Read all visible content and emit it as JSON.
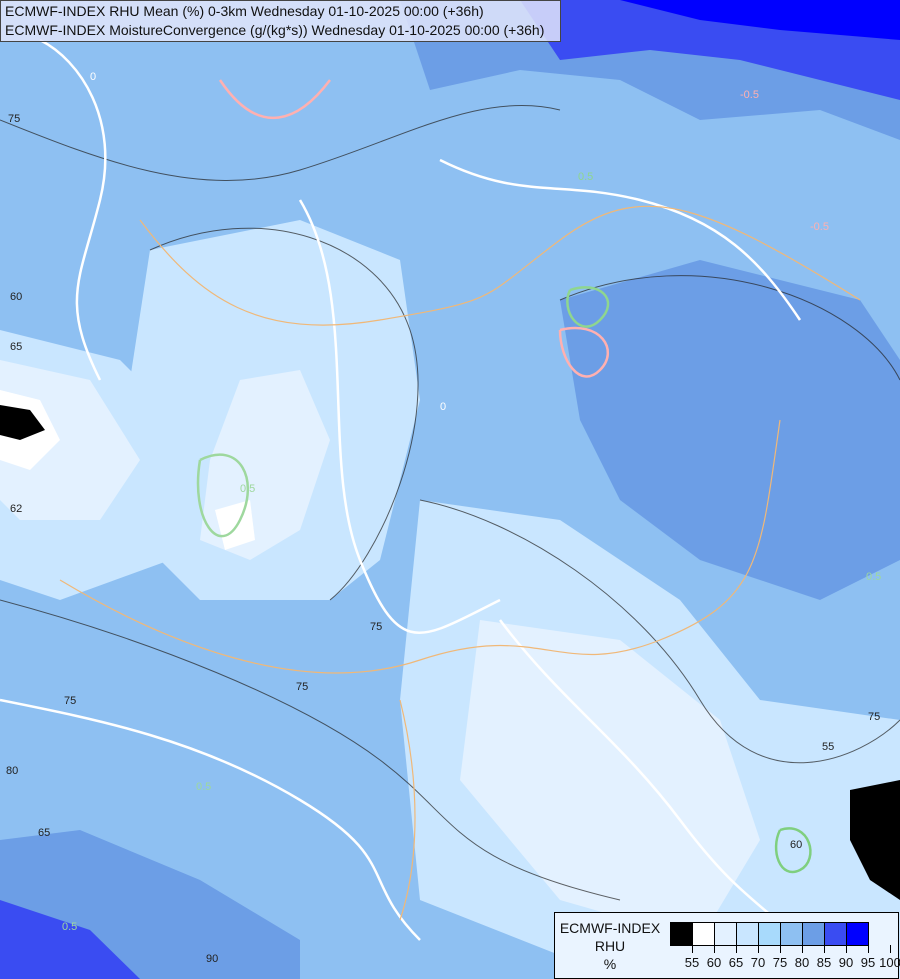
{
  "header": {
    "line1": "ECMWF-INDEX RHU Mean (%) 0-3km Wednesday 01-10-2025 00:00 (+36h)",
    "line2": "ECMWF-INDEX MoistureConvergence (g/(kg*s)) Wednesday 01-10-2025 00:00 (+36h)"
  },
  "legend": {
    "title": "ECMWF-INDEX",
    "variable": "RHU",
    "unit": "%",
    "colors": [
      "#000000",
      "#ffffff",
      "#e3f1ff",
      "#c9e6ff",
      "#a8dafc",
      "#8ec0f2",
      "#6c9ee6",
      "#3a4cf2",
      "#0000ff"
    ],
    "ticks": [
      "55",
      "60",
      "65",
      "70",
      "75",
      "80",
      "85",
      "90",
      "95",
      "100"
    ]
  },
  "contour_labels": [
    "75",
    "0",
    "0.5",
    "65",
    "0",
    "60",
    "62",
    "75",
    "0.5",
    "-0.5",
    "-0.5",
    "0.5",
    "75",
    "55",
    "60",
    "0.5",
    "0.5",
    "65",
    "90",
    "75",
    "75",
    "80"
  ]
}
